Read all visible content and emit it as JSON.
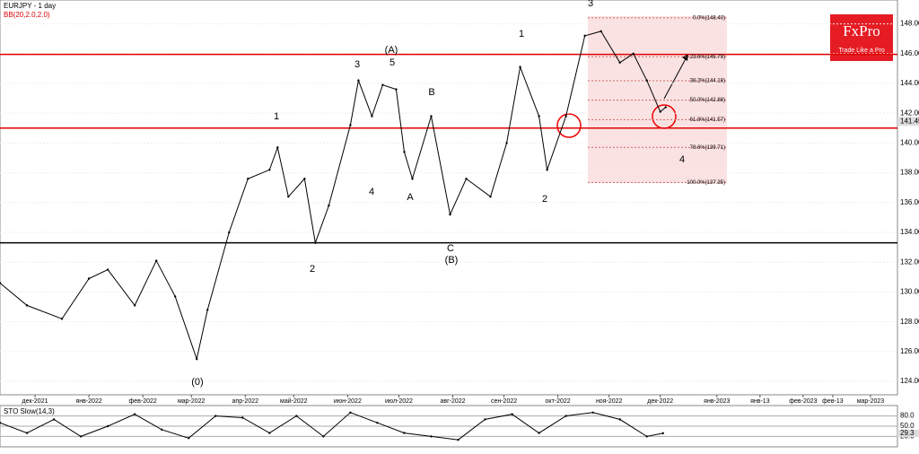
{
  "header": {
    "symbol": "EURJPY - 1 day",
    "indicator": "BB(20,2.0,2.0)",
    "logo": "FxPro",
    "tagline": "Trade Like a Pro"
  },
  "chart_data": [
    {
      "type": "line",
      "xlim": [
        0,
        333
      ],
      "ylim": [
        123.1,
        149.6
      ],
      "xticks": [
        {
          "value": 13,
          "label": "дек-2021"
        },
        {
          "value": 33,
          "label": "янв-2022"
        },
        {
          "value": 53,
          "label": "фев-2022"
        },
        {
          "value": 71,
          "label": "мар-2022"
        },
        {
          "value": 91,
          "label": "апр-2022"
        },
        {
          "value": 109,
          "label": "май-2022"
        },
        {
          "value": 129,
          "label": "июн-2022"
        },
        {
          "value": 148,
          "label": "июл-2022"
        },
        {
          "value": 168,
          "label": "авг-2022"
        },
        {
          "value": 187,
          "label": "сен-2022"
        },
        {
          "value": 207,
          "label": "окт-2022"
        },
        {
          "value": 226,
          "label": "ноя-2022"
        },
        {
          "value": 245,
          "label": "дек-2022"
        },
        {
          "value": 266,
          "label": "янв-2023"
        },
        {
          "value": 282,
          "label": "янв-13"
        },
        {
          "value": 298,
          "label": "фев-2023"
        },
        {
          "value": 309,
          "label": "фев-13"
        },
        {
          "value": 323,
          "label": "мар-2023"
        }
      ],
      "yticks": [
        {
          "value": 124,
          "label": "124.00"
        },
        {
          "value": 126,
          "label": "126.00"
        },
        {
          "value": 128,
          "label": "128.00"
        },
        {
          "value": 130,
          "label": "130.00"
        },
        {
          "value": 132,
          "label": "132.00"
        },
        {
          "value": 134,
          "label": "134.00"
        },
        {
          "value": 136,
          "label": "136.00"
        },
        {
          "value": 138,
          "label": "138.00"
        },
        {
          "value": 140,
          "label": "140.00"
        },
        {
          "value": 142,
          "label": "142.00"
        },
        {
          "value": 144,
          "label": "144.00"
        },
        {
          "value": 146,
          "label": "146.00"
        },
        {
          "value": 148,
          "label": "148.00"
        }
      ],
      "series": [
        {
          "name": "EURJPY",
          "color": "#000000",
          "x": [
            0,
            10,
            23,
            33,
            40,
            50,
            58,
            65,
            73,
            77,
            85,
            92,
            100,
            103,
            107,
            113,
            117,
            122,
            130,
            133,
            138,
            142,
            147,
            150,
            153,
            160,
            167,
            173,
            182,
            188,
            193,
            200,
            203,
            210,
            217,
            223,
            230,
            235,
            240,
            245,
            247
          ],
          "values": [
            130.6,
            129.1,
            128.2,
            130.9,
            131.5,
            129.1,
            132.1,
            129.7,
            125.5,
            128.8,
            134.0,
            137.6,
            138.2,
            139.7,
            136.4,
            137.6,
            133.3,
            135.8,
            141.2,
            144.2,
            141.8,
            143.9,
            143.6,
            139.4,
            137.6,
            141.8,
            135.2,
            137.6,
            136.4,
            140.0,
            145.1,
            141.8,
            138.2,
            141.8,
            147.2,
            147.5,
            145.4,
            146.0,
            144.2,
            142.1,
            142.4
          ]
        }
      ],
      "levels": [
        {
          "value": 145.95,
          "color": "#e00000"
        },
        {
          "value": 141.0,
          "color": "#e00000"
        },
        {
          "value": 133.3,
          "color": "#000000"
        }
      ],
      "price_marker": {
        "value": 141.45,
        "label": "141.45"
      },
      "fib_levels": [
        {
          "value": 148.4,
          "label": "0.0%(148.40)"
        },
        {
          "value": 145.79,
          "label": "23.6%(145.79)"
        },
        {
          "value": 144.18,
          "label": "38.2%(144.18)"
        },
        {
          "value": 142.88,
          "label": "50.0%(142.88)"
        },
        {
          "value": 141.57,
          "label": "61.8%(141.57)"
        },
        {
          "value": 139.71,
          "label": "78.6%(139.71)"
        },
        {
          "value": 137.35,
          "label": "100.0%(137.35)"
        }
      ],
      "annotations": [
        "(0)",
        "2",
        "1",
        "3",
        "4",
        "(A)",
        "5",
        "A",
        "B",
        "C",
        "(B)",
        "1",
        "2",
        "3",
        "4"
      ]
    },
    {
      "type": "line",
      "title": "STO Slow(14,3)",
      "xlim": [
        0,
        333
      ],
      "ylim": [
        0,
        100
      ],
      "yticks": [
        {
          "value": 80,
          "label": "80.0"
        },
        {
          "value": 50,
          "label": "50.0"
        },
        {
          "value": 20,
          "label": "20.0"
        }
      ],
      "current": {
        "value": 29.3,
        "label": "29.3"
      },
      "series": [
        {
          "name": "%K",
          "color": "#000000",
          "x": [
            0,
            10,
            20,
            30,
            40,
            50,
            60,
            70,
            80,
            90,
            100,
            110,
            120,
            130,
            140,
            150,
            160,
            170,
            180,
            190,
            200,
            210,
            220,
            230,
            240,
            246
          ],
          "values": [
            60,
            30,
            70,
            20,
            50,
            85,
            40,
            15,
            80,
            75,
            30,
            80,
            20,
            90,
            60,
            30,
            20,
            10,
            70,
            85,
            30,
            80,
            90,
            70,
            20,
            29.3
          ]
        }
      ]
    }
  ]
}
